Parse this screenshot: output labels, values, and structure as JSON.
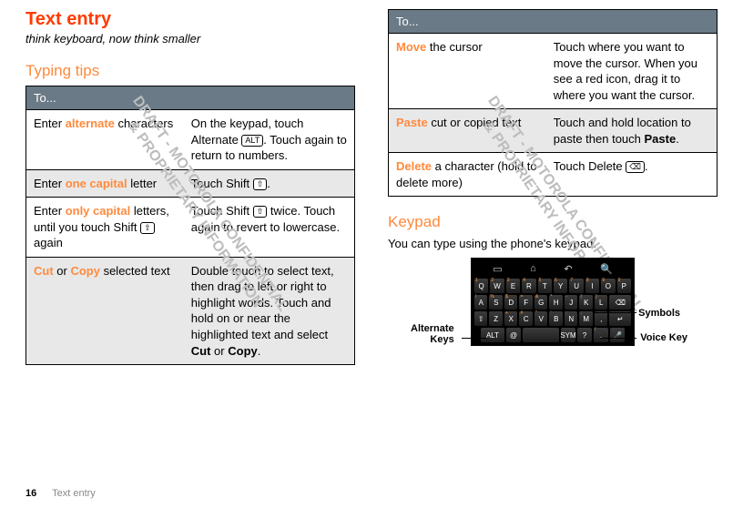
{
  "title": "Text entry",
  "subtitle": "think keyboard, now think smaller",
  "heading_tips": "Typing tips",
  "heading_keypad": "Keypad",
  "keypad_intro": "You can type using the phone's keypad.",
  "table_header": "To...",
  "left_rows": [
    {
      "left": {
        "pre": "Enter ",
        "hl": "alternate",
        "post": " characters"
      },
      "right_html": "On the keypad, touch Alternate <span class='keyicon' data-name='alt-key-icon' data-interactable='false'>ALT</span>. Touch again to return to numbers."
    },
    {
      "left": {
        "pre": "Enter ",
        "hl": "one capital",
        "post": " letter"
      },
      "right_html": "Touch Shift <span class='keyicon' data-name='shift-key-icon' data-interactable='false'>⇧</span>."
    },
    {
      "left": {
        "pre": "Enter ",
        "hl": "only capital",
        "post_html": " letters, until you touch Shift <span class='keyicon' data-name='shift-key-icon' data-interactable='false'>⇧</span> again"
      },
      "right_html": "Touch Shift <span class='keyicon' data-name='shift-key-icon' data-interactable='false'>⇧</span> twice. Touch again to revert to lowercase."
    },
    {
      "left": {
        "hl": "Cut",
        "mid": " or ",
        "hl2": "Copy",
        "post": " selected text"
      },
      "right_html": "Double touch to select text, then drag to left or right to highlight words. Touch and hold on or near the highlighted text and select <b>Cut</b> or <b>Copy</b>."
    }
  ],
  "right_rows": [
    {
      "left": {
        "hl": "Move",
        "post": " the cursor"
      },
      "right_html": "Touch where you want to move the cursor. When you see a red icon, drag it to where you want the cursor."
    },
    {
      "left": {
        "hl": "Paste",
        "post": " cut or copied text"
      },
      "right_html": "Touch and hold location to paste then touch <b>Paste</b>."
    },
    {
      "left": {
        "hl": "Delete",
        "post": " a character (hold to delete more)"
      },
      "right_html": "Touch Delete <span class='keyicon' data-name='delete-key-icon' data-interactable='false'>⌫</span>."
    }
  ],
  "labels": {
    "symbols": "Symbols",
    "voice": "Voice Key",
    "altkeys": "Alternate\nKeys"
  },
  "watermark": "DRAFT - MOTOROLA CONFIDENTIAL\n& PROPRIETARY INFORMATION",
  "footer": {
    "page": "16",
    "section": "Text entry"
  },
  "colors": {
    "accent": "#ff8a3d",
    "title": "#ff3b00",
    "table_header_bg": "#6a7a86",
    "alt_row": "#e8e8e8",
    "watermark": "#bdbdbd"
  }
}
